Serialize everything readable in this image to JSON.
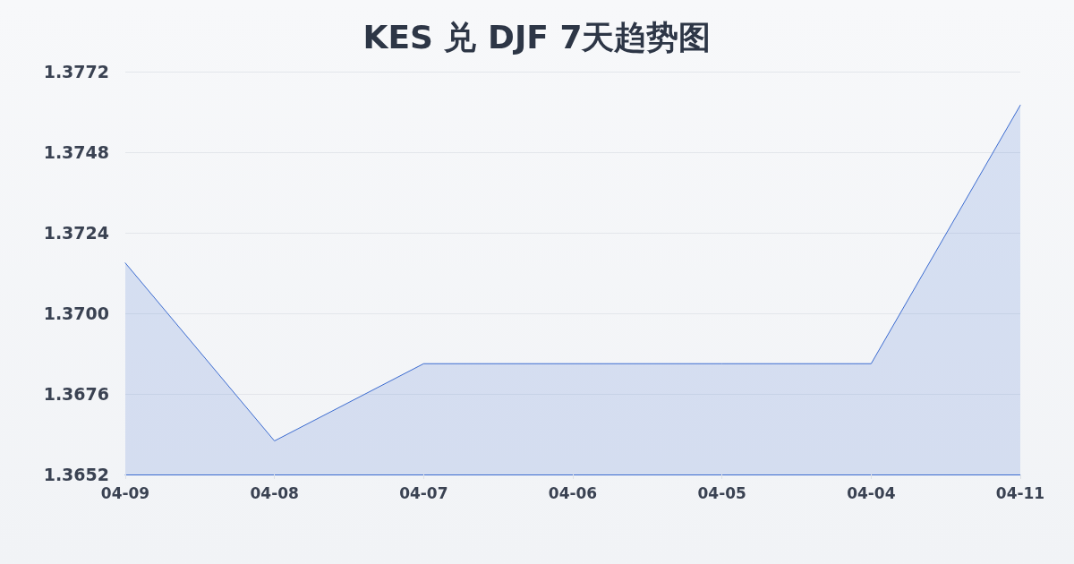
{
  "chart_data": {
    "type": "area",
    "title": "KES 兑 DJF 7天趋势图",
    "categories": [
      "04-09",
      "04-08",
      "04-07",
      "04-06",
      "04-05",
      "04-04",
      "04-11"
    ],
    "series": [
      {
        "color": "#3b6bd0",
        "values": [
          1.3715,
          1.3662,
          1.3685,
          1.3685,
          1.3685,
          1.3685,
          1.3762
        ]
      }
    ],
    "ylim": [
      1.3652,
      1.3772
    ],
    "yticks": [
      1.3652,
      1.3676,
      {
        "value": 1.37,
        "label": "1.3700"
      },
      1.3724,
      1.3748,
      1.3772
    ],
    "grid": "y",
    "marker": "none",
    "line_style": "solid"
  }
}
